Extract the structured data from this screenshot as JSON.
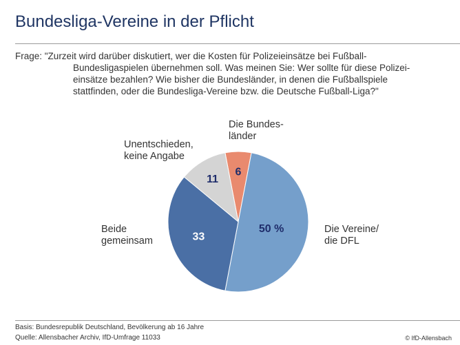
{
  "title": "Bundesliga-Vereine in der Pflicht",
  "question": {
    "lines": [
      "Frage: \"Zurzeit wird darüber diskutiert, wer die Kosten für Polizeieinsätze bei Fußball-",
      "Bundesligaspielen übernehmen soll. Was meinen Sie: Wer sollte für diese Polizei-",
      "einsätze bezahlen? Wie bisher die Bundesländer, in denen die Fußballspiele",
      "stattfinden, oder die Bundesliga-Vereine bzw. die Deutsche Fußball-Liga?\""
    ]
  },
  "chart_data": {
    "type": "pie",
    "unit": "%",
    "slices": [
      {
        "label": "Die Bundesländer",
        "label_lines": [
          "Die Bundes-",
          "länder"
        ],
        "value": 6,
        "value_label": "6",
        "color": "#e98a6e"
      },
      {
        "label": "Die Vereine/die DFL",
        "label_lines": [
          "Die Vereine/",
          "die DFL"
        ],
        "value": 50,
        "value_label": "50 %",
        "color": "#759fcb"
      },
      {
        "label": "Beide gemeinsam",
        "label_lines": [
          "Beide",
          "gemeinsam"
        ],
        "value": 33,
        "value_label": "33",
        "color": "#4a6fa5"
      },
      {
        "label": "Unentschieden, keine Angabe",
        "label_lines": [
          "Unentschieden,",
          "keine Angabe"
        ],
        "value": 11,
        "value_label": "11",
        "color": "#d4d4d4"
      }
    ]
  },
  "footer": {
    "basis": "Basis: Bundesrepublik Deutschland, Bevölkerung ab 16 Jahre",
    "source": "Quelle: Allensbacher Archiv, IfD-Umfrage 11033",
    "copyright": "© IfD-Allensbach"
  }
}
